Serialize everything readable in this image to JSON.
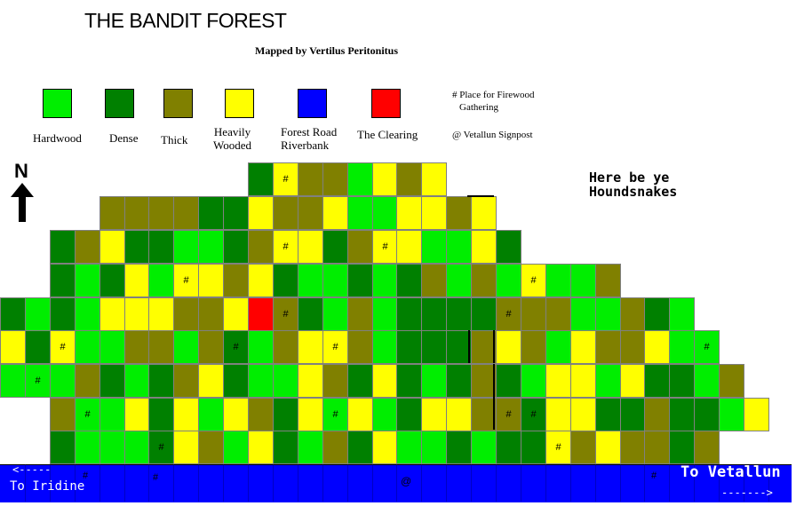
{
  "title": "THE BANDIT FOREST",
  "subtitle": "Mapped by Vertilus Peritonitus",
  "legend": [
    {
      "name": "Hardwood",
      "color": "#00ee00"
    },
    {
      "name": "Dense",
      "color": "#008000"
    },
    {
      "name": "Thick",
      "color": "#808000"
    },
    {
      "name": "Heavily Wooded",
      "color": "#ffff00"
    },
    {
      "name": "Forest Road Riverbank",
      "color": "#0000ff"
    },
    {
      "name": "The Clearing",
      "color": "#ff0000"
    }
  ],
  "legend_text": {
    "hardwood": "Hardwood",
    "dense": "Dense",
    "thick": "Thick",
    "heavily_1": "Heavily",
    "heavily_2": "Wooded",
    "road_1": "Forest Road",
    "road_2": "Riverbank",
    "clearing": "The Clearing"
  },
  "notes": {
    "firewood_1": "# Place for Firewood",
    "firewood_2": "Gathering",
    "signpost": "@ Vetallun Signpost"
  },
  "compass": "N",
  "hounds_1": "Here be ye",
  "hounds_2": "Houndsnakes",
  "road": {
    "left_arrow": "<-----",
    "left_label": "To Iridine",
    "right_label": "To Vetallun",
    "right_arrow": "------->",
    "marks": [
      "#",
      "#",
      "@",
      "#"
    ]
  },
  "tiles": {
    "key": {
      "H": "Hardwood",
      "D": "Dense",
      "T": "Thick",
      "Y": "Heavily Wooded",
      "R": "The Clearing"
    },
    "rows": [
      {
        "start": 10,
        "cells": "DY#TTHYTY"
      },
      {
        "start": 4,
        "cells": "TTTTDDYTTYHHYYTY"
      },
      {
        "start": 2,
        "cells": "DTYDDHHDTY#YDTY#YHHYD"
      },
      {
        "start": 2,
        "cells": "DHDYHY#YTYDHHDHDTHTHY#HHT"
      },
      {
        "start": 0,
        "cells": "DHDHYYYTTYRT#DHTHDDDDT#TTHHTDH"
      },
      {
        "start": 0,
        "cells": "YDY#HHTTHTD#HTYY#THDDDTYTHYTTYHH#"
      },
      {
        "start": 0,
        "cells": "HH#HTDHDTYDHHYTDYDHDTDHYYHYDDHT"
      },
      {
        "start": 2,
        "cells": "TH#HYDYHYTDYH#YHDYYTT#D#YYDDTDDHY"
      },
      {
        "start": 2,
        "cells": "DHHHD#YTHYDHTDYHHDHDDY#TYTTDT"
      }
    ]
  }
}
